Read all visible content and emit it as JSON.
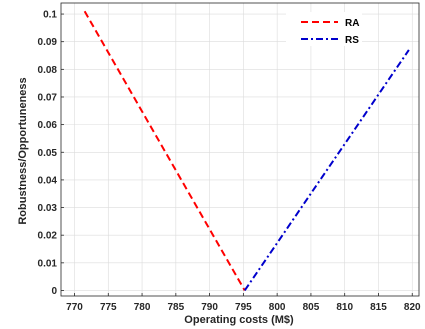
{
  "chart_data": {
    "type": "line",
    "title": "",
    "xlabel": "Operating costs (M$)",
    "ylabel": "Robustness/Opportuneness",
    "xlim": [
      768,
      821
    ],
    "ylim": [
      -0.002,
      0.104
    ],
    "xticks": [
      770,
      775,
      780,
      785,
      790,
      795,
      800,
      805,
      810,
      815,
      820
    ],
    "yticks": [
      0,
      0.01,
      0.02,
      0.03,
      0.04,
      0.05,
      0.06,
      0.07,
      0.08,
      0.09,
      0.1
    ],
    "grid": true,
    "legend_position": "top-right",
    "series": [
      {
        "name": "RA",
        "color": "#ff0000",
        "line_style": "dashed",
        "x": [
          771.5,
          795.2
        ],
        "y": [
          0.101,
          0.0
        ]
      },
      {
        "name": "RS",
        "color": "#0000cc",
        "line_style": "dash-dot",
        "x": [
          795.2,
          819.5
        ],
        "y": [
          0.0,
          0.087
        ]
      }
    ]
  }
}
